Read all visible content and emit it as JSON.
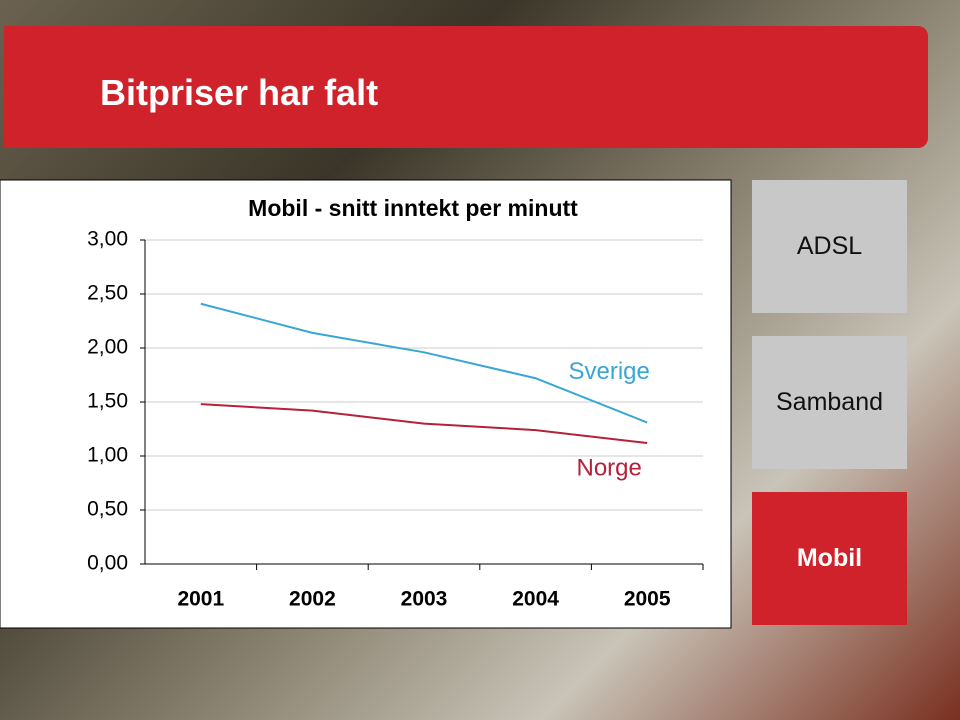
{
  "slide_title": "Bitpriser har falt",
  "nav": [
    "ADSL",
    "Samband",
    "Mobil"
  ],
  "chart_data": {
    "type": "line",
    "title": "Mobil - snitt inntekt per minutt",
    "categories": [
      "2001",
      "2002",
      "2003",
      "2004",
      "2005"
    ],
    "series": [
      {
        "name": "Sverige",
        "color": "#3aa6d6",
        "values": [
          2.41,
          2.14,
          1.96,
          1.72,
          1.31
        ]
      },
      {
        "name": "Norge",
        "color": "#b5203a",
        "values": [
          1.48,
          1.42,
          1.3,
          1.24,
          1.12
        ]
      }
    ],
    "ylim": [
      0,
      3
    ],
    "yticks": [
      {
        "value": 0,
        "label": "0,00"
      },
      {
        "value": 0.5,
        "label": "0,50"
      },
      {
        "value": 1,
        "label": "1,00"
      },
      {
        "value": 1.5,
        "label": "1,50"
      },
      {
        "value": 2,
        "label": "2,00"
      },
      {
        "value": 2.5,
        "label": "2,50"
      },
      {
        "value": 3,
        "label": "3,00"
      }
    ],
    "grid": true
  }
}
